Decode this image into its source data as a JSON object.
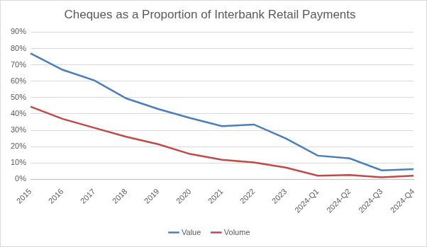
{
  "chart_data": {
    "type": "line",
    "title": "Cheques as a Proportion of Interbank Retail Payments",
    "categories": [
      "2015",
      "2016",
      "2017",
      "2018",
      "2019",
      "2020",
      "2021",
      "2022",
      "2023",
      "2024-Q1",
      "2024-Q2",
      "2024-Q3",
      "2024-Q4"
    ],
    "series": [
      {
        "name": "Value",
        "color": "#4a7ebb",
        "marker": "none",
        "line_style": "solid",
        "values": [
          77,
          67,
          60.5,
          49.5,
          43,
          37.5,
          32.5,
          33.5,
          25,
          14.5,
          12.8,
          5.5,
          6.2
        ]
      },
      {
        "name": "Volume",
        "color": "#be4b48",
        "marker": "none",
        "line_style": "solid",
        "values": [
          44.5,
          37,
          31.5,
          26,
          21.5,
          15.5,
          12,
          10.3,
          7.2,
          2.2,
          2.7,
          1.3,
          2.2
        ]
      }
    ],
    "ylim": [
      0,
      90
    ],
    "yticks": [
      {
        "value": 0,
        "label": "0%"
      },
      {
        "value": 10,
        "label": "10%"
      },
      {
        "value": 20,
        "label": "20%"
      },
      {
        "value": 30,
        "label": "30%"
      },
      {
        "value": 40,
        "label": "40%"
      },
      {
        "value": 50,
        "label": "50%"
      },
      {
        "value": 60,
        "label": "60%"
      },
      {
        "value": 70,
        "label": "70%"
      },
      {
        "value": 80,
        "label": "80%"
      },
      {
        "value": 90,
        "label": "90%"
      }
    ],
    "grid": true,
    "legend": "bottom"
  }
}
